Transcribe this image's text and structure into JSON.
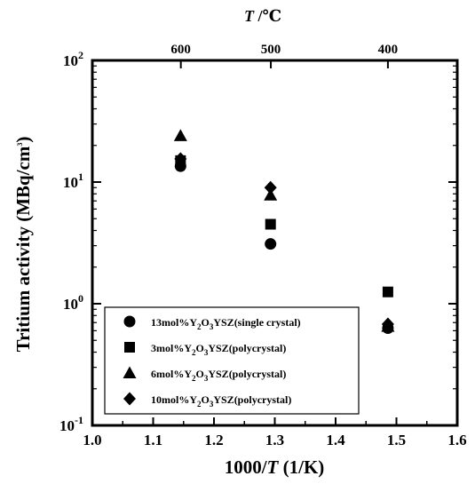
{
  "chart_data": {
    "type": "scatter",
    "xlabel": {
      "main": "1000/",
      "italic": "T",
      "rest": " (1/K)"
    },
    "ylabel": "Tritium activity (MBq/cm",
    "ylabel_sup": "3",
    "ylabel_close": ")",
    "xlim": [
      1.0,
      1.6
    ],
    "ylim": [
      0.1,
      100
    ],
    "y_scale": "log",
    "x_ticks": [
      1.0,
      1.1,
      1.2,
      1.3,
      1.4,
      1.5,
      1.6
    ],
    "x_tick_labels": [
      "1.0",
      "1.1",
      "1.2",
      "1.3",
      "1.4",
      "1.5",
      "1.6"
    ],
    "y_tick_exponents": [
      -1,
      0,
      1,
      2
    ],
    "top_axis": {
      "title_italic": "T",
      "title_rest": " /℃",
      "ticks": [
        {
          "x": 1.1455,
          "label": "600"
        },
        {
          "x": 1.2935,
          "label": "500"
        },
        {
          "x": 1.486,
          "label": "400"
        }
      ]
    },
    "legend_position": "lower-left",
    "series": [
      {
        "marker": "circle",
        "legend": {
          "a": "13mol%Y",
          "s1": "2",
          "b": "O",
          "s2": "3",
          "c": "YSZ(single crystal)"
        },
        "points": [
          [
            1.145,
            13.5
          ],
          [
            1.293,
            3.1
          ],
          [
            1.486,
            0.63
          ]
        ]
      },
      {
        "marker": "square",
        "legend": {
          "a": "3mol%Y",
          "s1": "2",
          "b": "O",
          "s2": "3",
          "c": "YSZ(polycrystal)"
        },
        "points": [
          [
            1.145,
            15.0
          ],
          [
            1.293,
            4.5
          ],
          [
            1.486,
            1.25
          ]
        ]
      },
      {
        "marker": "triangle",
        "legend": {
          "a": "6mol%Y",
          "s1": "2",
          "b": "O",
          "s2": "3",
          "c": "YSZ(polycrystal)"
        },
        "points": [
          [
            1.145,
            24.0
          ],
          [
            1.293,
            7.8
          ],
          [
            1.486,
            0.65
          ]
        ]
      },
      {
        "marker": "diamond",
        "legend": {
          "a": "10mol%Y",
          "s1": "2",
          "b": "O",
          "s2": "3",
          "c": "YSZ(polycrystal)"
        },
        "points": [
          [
            1.145,
            15.5
          ],
          [
            1.293,
            9.0
          ],
          [
            1.486,
            0.68
          ]
        ]
      }
    ]
  }
}
